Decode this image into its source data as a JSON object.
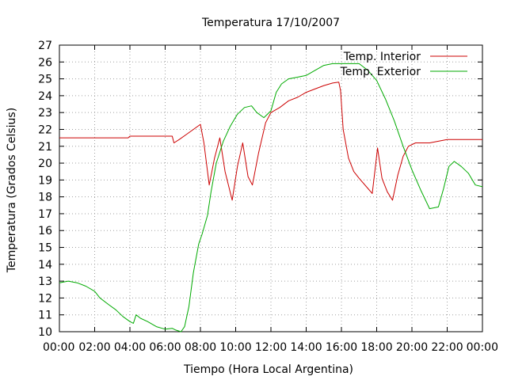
{
  "chart_data": {
    "type": "line",
    "title": "Temperatura 17/10/2007",
    "xlabel": "Tiempo (Hora Local Argentina)",
    "ylabel": "Temperatura (Grados Celsius)",
    "xlim": [
      0,
      24
    ],
    "ylim": [
      10,
      27
    ],
    "x_ticks": [
      0,
      2,
      4,
      6,
      8,
      10,
      12,
      14,
      16,
      18,
      20,
      22,
      24
    ],
    "x_tick_labels": [
      "00:00",
      "02:00",
      "04:00",
      "06:00",
      "08:00",
      "10:00",
      "12:00",
      "14:00",
      "16:00",
      "18:00",
      "20:00",
      "22:00",
      "00:00"
    ],
    "y_ticks": [
      10,
      11,
      12,
      13,
      14,
      15,
      16,
      17,
      18,
      19,
      20,
      21,
      22,
      23,
      24,
      25,
      26,
      27
    ],
    "y_tick_labels": [
      "10",
      "11",
      "12",
      "13",
      "14",
      "15",
      "16",
      "17",
      "18",
      "19",
      "20",
      "21",
      "22",
      "23",
      "24",
      "25",
      "26",
      "27"
    ],
    "grid": true,
    "legend": "top-right",
    "series": [
      {
        "name": "Temp. Interior",
        "color": "#cc0000",
        "points": [
          [
            0.0,
            21.5
          ],
          [
            2.0,
            21.5
          ],
          [
            3.9,
            21.5
          ],
          [
            4.0,
            21.6
          ],
          [
            5.5,
            21.6
          ],
          [
            6.4,
            21.6
          ],
          [
            6.5,
            21.2
          ],
          [
            6.8,
            21.4
          ],
          [
            7.2,
            21.7
          ],
          [
            7.6,
            22.0
          ],
          [
            8.0,
            22.3
          ],
          [
            8.2,
            21.2
          ],
          [
            8.5,
            18.7
          ],
          [
            8.8,
            20.3
          ],
          [
            9.1,
            21.5
          ],
          [
            9.4,
            19.5
          ],
          [
            9.8,
            17.8
          ],
          [
            10.1,
            19.8
          ],
          [
            10.4,
            21.2
          ],
          [
            10.7,
            19.2
          ],
          [
            10.95,
            18.7
          ],
          [
            11.3,
            20.6
          ],
          [
            11.7,
            22.4
          ],
          [
            12.0,
            23.0
          ],
          [
            12.5,
            23.3
          ],
          [
            13.0,
            23.7
          ],
          [
            13.5,
            23.9
          ],
          [
            14.0,
            24.2
          ],
          [
            14.5,
            24.4
          ],
          [
            15.0,
            24.6
          ],
          [
            15.5,
            24.75
          ],
          [
            15.85,
            24.8
          ],
          [
            15.95,
            24.3
          ],
          [
            16.1,
            22.0
          ],
          [
            16.4,
            20.3
          ],
          [
            16.7,
            19.5
          ],
          [
            17.0,
            19.1
          ],
          [
            17.5,
            18.5
          ],
          [
            17.75,
            18.2
          ],
          [
            17.95,
            20.0
          ],
          [
            18.05,
            20.9
          ],
          [
            18.3,
            19.1
          ],
          [
            18.6,
            18.3
          ],
          [
            18.9,
            17.8
          ],
          [
            19.2,
            19.3
          ],
          [
            19.5,
            20.4
          ],
          [
            19.8,
            21.0
          ],
          [
            20.2,
            21.2
          ],
          [
            21.0,
            21.2
          ],
          [
            21.5,
            21.3
          ],
          [
            22.0,
            21.4
          ],
          [
            24.0,
            21.4
          ]
        ]
      },
      {
        "name": "Temp. Exterior",
        "color": "#00aa00",
        "points": [
          [
            0.0,
            12.9
          ],
          [
            0.5,
            13.0
          ],
          [
            1.0,
            12.9
          ],
          [
            1.5,
            12.7
          ],
          [
            2.0,
            12.4
          ],
          [
            2.3,
            12.0
          ],
          [
            2.8,
            11.6
          ],
          [
            3.2,
            11.3
          ],
          [
            3.6,
            10.9
          ],
          [
            4.0,
            10.6
          ],
          [
            4.2,
            10.5
          ],
          [
            4.35,
            11.0
          ],
          [
            4.6,
            10.8
          ],
          [
            5.0,
            10.6
          ],
          [
            5.5,
            10.3
          ],
          [
            6.0,
            10.15
          ],
          [
            6.4,
            10.2
          ],
          [
            6.6,
            10.1
          ],
          [
            6.9,
            10.0
          ],
          [
            7.1,
            10.3
          ],
          [
            7.35,
            11.5
          ],
          [
            7.6,
            13.5
          ],
          [
            7.9,
            15.2
          ],
          [
            8.1,
            15.8
          ],
          [
            8.4,
            16.9
          ],
          [
            8.6,
            18.3
          ],
          [
            8.9,
            20.0
          ],
          [
            9.3,
            21.3
          ],
          [
            9.7,
            22.2
          ],
          [
            10.1,
            22.9
          ],
          [
            10.5,
            23.3
          ],
          [
            10.9,
            23.4
          ],
          [
            11.2,
            23.0
          ],
          [
            11.6,
            22.7
          ],
          [
            12.0,
            23.1
          ],
          [
            12.3,
            24.2
          ],
          [
            12.6,
            24.7
          ],
          [
            13.0,
            25.0
          ],
          [
            13.5,
            25.1
          ],
          [
            14.0,
            25.2
          ],
          [
            14.5,
            25.5
          ],
          [
            15.0,
            25.8
          ],
          [
            15.5,
            25.9
          ],
          [
            16.0,
            25.9
          ],
          [
            16.5,
            25.9
          ],
          [
            17.0,
            25.9
          ],
          [
            17.5,
            25.5
          ],
          [
            18.0,
            24.9
          ],
          [
            18.5,
            23.8
          ],
          [
            19.0,
            22.5
          ],
          [
            19.5,
            21.0
          ],
          [
            20.0,
            19.6
          ],
          [
            20.5,
            18.4
          ],
          [
            21.0,
            17.3
          ],
          [
            21.5,
            17.4
          ],
          [
            21.8,
            18.5
          ],
          [
            22.1,
            19.8
          ],
          [
            22.4,
            20.1
          ],
          [
            22.8,
            19.8
          ],
          [
            23.2,
            19.4
          ],
          [
            23.6,
            18.7
          ],
          [
            24.0,
            18.6
          ]
        ]
      }
    ]
  }
}
